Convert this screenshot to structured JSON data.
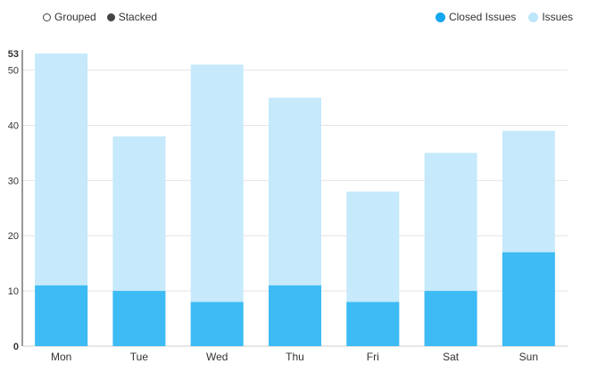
{
  "controls": {
    "grouped_label": "Grouped",
    "stacked_label": "Stacked",
    "selected": "stacked"
  },
  "chart_data": {
    "type": "bar",
    "mode": "stacked",
    "categories": [
      "Mon",
      "Tue",
      "Wed",
      "Thu",
      "Fri",
      "Sat",
      "Sun"
    ],
    "series": [
      {
        "name": "Closed Issues",
        "color": "#3dbbf4",
        "values": [
          11,
          10,
          8,
          11,
          8,
          10,
          17
        ]
      },
      {
        "name": "Issues",
        "color": "#c6e9fb",
        "values": [
          53,
          38,
          51,
          45,
          28,
          35,
          39
        ]
      }
    ],
    "ylim": [
      0,
      53
    ],
    "yticks": [
      0,
      10,
      20,
      30,
      40,
      50,
      53
    ],
    "grid": true,
    "legend": "top-right"
  }
}
